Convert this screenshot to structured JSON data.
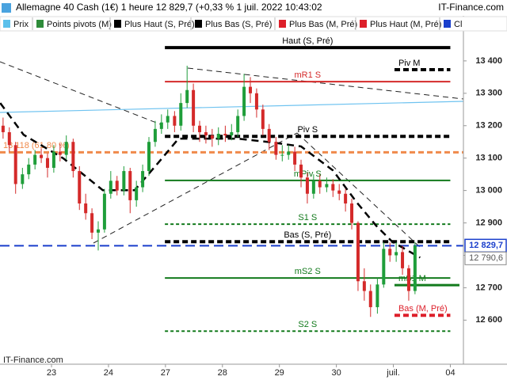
{
  "header": {
    "title": "Allemagne 40 Cash (1€) 1 heure 12 829,7 (+0,33 % 1 juil. 2022 10:43:02",
    "brand": "IT-Finance.com"
  },
  "footer": {
    "watermark": "IT-Finance.com"
  },
  "chart_data": {
    "type": "candlestick",
    "legend": [
      {
        "label": "Prix",
        "color": "#5bc0eb"
      },
      {
        "label": "Points pivots (M)",
        "color": "#2e8b3a"
      },
      {
        "label": "Plus Haut (S, Pré)",
        "color": "#000000"
      },
      {
        "label": "Plus Bas (S, Pré)",
        "color": "#000000"
      },
      {
        "label": "Plus Bas (M, Pré)",
        "color": "#dd1f2a"
      },
      {
        "label": "Plus Haut (M, Pré)",
        "color": "#dd1f2a"
      },
      {
        "label": "Cl",
        "color": "#1a3fcc"
      }
    ],
    "up_color": "#1f9e3a",
    "down_color": "#d42a2a",
    "xlim": [
      -0.904,
      7.23
    ],
    "xticks": [
      {
        "value": 0,
        "label": "23"
      },
      {
        "value": 1,
        "label": "24"
      },
      {
        "value": 2,
        "label": "27"
      },
      {
        "value": 3,
        "label": "28"
      },
      {
        "value": 4,
        "label": "29"
      },
      {
        "value": 5,
        "label": "30"
      },
      {
        "value": 6,
        "label": "juil."
      },
      {
        "value": 7,
        "label": "04"
      }
    ],
    "ylim": [
      12464,
      13539
    ],
    "yticks": [
      {
        "value": 12600,
        "label": "12 600"
      },
      {
        "value": 12700,
        "label": "12 700"
      },
      {
        "value": 12800,
        "label": "12 800"
      },
      {
        "value": 12900,
        "label": "12 900"
      },
      {
        "value": 13000,
        "label": "13 000"
      },
      {
        "value": 13100,
        "label": "13 100"
      },
      {
        "value": 13200,
        "label": "13 200"
      },
      {
        "value": 13300,
        "label": "13 300"
      },
      {
        "value": 13400,
        "label": "13 400"
      },
      {
        "value": 13500,
        "label": "13 500"
      }
    ],
    "x": [
      -0.85,
      -0.74,
      -0.63,
      -0.51,
      -0.4,
      -0.29,
      -0.18,
      -0.07,
      0.04,
      0.15,
      0.26,
      0.38,
      0.49,
      0.6,
      0.71,
      0.82,
      0.93,
      1.04,
      1.15,
      1.27,
      1.38,
      1.49,
      1.6,
      1.71,
      1.82,
      1.93,
      2.04,
      2.16,
      2.27,
      2.38,
      2.49,
      2.6,
      2.71,
      2.82,
      2.93,
      3.05,
      3.16,
      3.27,
      3.38,
      3.49,
      3.6,
      3.71,
      3.82,
      3.94,
      4.05,
      4.16,
      4.27,
      4.38,
      4.49,
      4.6,
      4.71,
      4.83,
      4.94,
      5.05,
      5.16,
      5.27,
      5.38,
      5.49,
      5.6,
      5.72,
      5.83,
      5.94,
      6.05,
      6.16,
      6.27,
      6.38
    ],
    "open": [
      13200,
      13180,
      13140,
      13020,
      13050,
      13080,
      13110,
      13100,
      13070,
      13120,
      13110,
      13150,
      13060,
      12960,
      12930,
      12870,
      12880,
      12990,
      13030,
      13000,
      13060,
      12970,
      13010,
      13060,
      13150,
      13190,
      13210,
      13230,
      13200,
      13270,
      13310,
      13200,
      13180,
      13170,
      13160,
      13175,
      13170,
      13180,
      13230,
      13320,
      13300,
      13250,
      13190,
      13150,
      13110,
      13110,
      13120,
      13080,
      13040,
      12990,
      13030,
      13010,
      13020,
      13000,
      12990,
      12960,
      12900,
      12720,
      12690,
      12640,
      12710,
      12820,
      12800,
      12810,
      12760,
      12690
    ],
    "high": [
      13225,
      13195,
      13150,
      13070,
      13100,
      13125,
      13130,
      13115,
      13140,
      13145,
      13170,
      13160,
      13075,
      12990,
      12945,
      12905,
      13005,
      13060,
      13045,
      13075,
      13070,
      13030,
      13080,
      13165,
      13215,
      13235,
      13250,
      13245,
      13300,
      13385,
      13330,
      13215,
      13200,
      13190,
      13195,
      13200,
      13205,
      13250,
      13360,
      13350,
      13315,
      13265,
      13205,
      13165,
      13140,
      13140,
      13135,
      13095,
      13055,
      13050,
      13050,
      13040,
      13035,
      13020,
      13005,
      12975,
      12905,
      12760,
      12710,
      12730,
      12840,
      12840,
      12840,
      12830,
      12770,
      12840
    ],
    "low": [
      13160,
      13120,
      12990,
      13005,
      13035,
      13065,
      13085,
      13040,
      13055,
      13090,
      13095,
      13040,
      12940,
      12910,
      12850,
      12815,
      12870,
      12975,
      12985,
      12985,
      12930,
      12950,
      12995,
      13045,
      13135,
      13175,
      13190,
      13180,
      13185,
      13255,
      13180,
      13150,
      13145,
      13135,
      13140,
      13150,
      13155,
      13165,
      13215,
      13270,
      13225,
      13170,
      13125,
      13095,
      13090,
      13095,
      13060,
      13010,
      12960,
      12975,
      12990,
      12995,
      12980,
      12970,
      12935,
      12880,
      12690,
      12660,
      12610,
      12620,
      12700,
      12780,
      12780,
      12740,
      12660,
      12680
    ],
    "close": [
      13180,
      13140,
      13020,
      13050,
      13080,
      13110,
      13100,
      13070,
      13120,
      13110,
      13150,
      13060,
      12960,
      12930,
      12870,
      12880,
      12990,
      13030,
      13000,
      13060,
      12970,
      13010,
      13060,
      13150,
      13190,
      13210,
      13230,
      13200,
      13270,
      13310,
      13200,
      13180,
      13170,
      13160,
      13175,
      13170,
      13180,
      13230,
      13320,
      13300,
      13250,
      13190,
      13150,
      13110,
      13110,
      13120,
      13080,
      13040,
      12990,
      13030,
      13010,
      13020,
      13000,
      12990,
      12960,
      12900,
      12720,
      12690,
      12640,
      12710,
      12820,
      12800,
      12810,
      12760,
      12690,
      12829.7
    ],
    "moving_average": {
      "color": "#000000",
      "x": [
        -0.9,
        -0.49,
        0.21,
        0.9,
        1.46,
        1.88,
        2.23,
        3.27,
        3.89,
        4.38,
        4.94,
        5.35,
        5.7,
        5.98,
        6.47
      ],
      "values": [
        13270,
        13172,
        13099,
        13001,
        13001,
        13087,
        13160,
        13160,
        13148,
        13136,
        13062,
        12965,
        12891,
        12842,
        12793
      ]
    },
    "levels": [
      {
        "label": "Haut (S, Pré)",
        "value": 13441,
        "color": "#000000",
        "style": "solid",
        "width": 4,
        "x_start": 1.99,
        "x_end": 7.0
      },
      {
        "label": "Piv M",
        "value": 13373,
        "color": "#000000",
        "style": "dashed",
        "width": 4,
        "x_start": 6.02,
        "x_end": 7.0
      },
      {
        "label": "mR1 S",
        "value": 13336,
        "color": "#d42a2a",
        "style": "solid",
        "width": 2,
        "x_start": 1.99,
        "x_end": 7.0
      },
      {
        "label": "Piv S",
        "value": 13167,
        "color": "#000000",
        "style": "dashed",
        "width": 4,
        "x_start": 1.99,
        "x_end": 7.0
      },
      {
        "label": "13 118 (61,80 %)",
        "value": 13118,
        "color": "#f08a4b",
        "style": "dashed",
        "width": 3,
        "x_start": -0.904,
        "x_end": 7.23
      },
      {
        "label": "mPiv S",
        "value": 13031,
        "color": "#127a1c",
        "style": "solid",
        "width": 2,
        "x_start": 1.99,
        "x_end": 7.0
      },
      {
        "label": "S1 S",
        "value": 12896,
        "color": "#127a1c",
        "style": "dotted",
        "width": 2,
        "x_start": 1.99,
        "x_end": 7.0
      },
      {
        "label": "Bas (S, Pré)",
        "value": 12842,
        "color": "#000000",
        "style": "dashed",
        "width": 4,
        "x_start": 1.99,
        "x_end": 7.0
      },
      {
        "value": 12829.7,
        "color": "#1a3fcc",
        "style": "longdash",
        "width": 2,
        "x_start": -0.904,
        "x_end": 7.23
      },
      {
        "label": "mS2 S",
        "value": 12730,
        "color": "#127a1c",
        "style": "solid",
        "width": 2,
        "x_start": 1.99,
        "x_end": 7.0
      },
      {
        "label": "mS1 M",
        "value": 12708,
        "color": "#127a1c",
        "style": "solid",
        "width": 3,
        "x_start": 6.02,
        "x_end": 7.16
      },
      {
        "label": "Bas (M, Pré)",
        "value": 12615,
        "color": "#dd1f2a",
        "style": "dashed",
        "width": 4,
        "x_start": 6.02,
        "x_end": 7.0
      },
      {
        "label": "S2 S",
        "value": 12566,
        "color": "#127a1c",
        "style": "dotted",
        "width": 2,
        "x_start": 1.99,
        "x_end": 7.0
      }
    ],
    "price_tags": [
      {
        "value": 12829.7,
        "label": "12 829,7",
        "color": "#1a3fcc"
      },
      {
        "value": 12790.6,
        "label": "12 790,6",
        "color": "#888888"
      }
    ]
  }
}
